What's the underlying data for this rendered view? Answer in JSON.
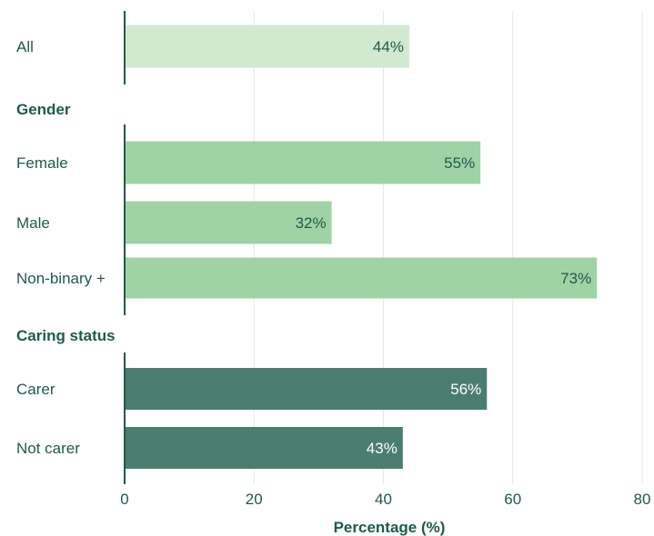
{
  "chart_data": {
    "type": "bar",
    "orientation": "horizontal",
    "xlabel": "Percentage (%)",
    "ylabel": "",
    "xlim": [
      0,
      80
    ],
    "x_ticks": [
      "0",
      "20",
      "40",
      "60",
      "80"
    ],
    "grid": true,
    "groups": [
      {
        "heading": "",
        "color": "#d0e9cf",
        "label_color": "#1f5a4a",
        "bars": [
          {
            "category": "All",
            "value": 44,
            "label": "44%"
          }
        ]
      },
      {
        "heading": "Gender",
        "color": "#9fd3a6",
        "label_color": "#1f5a4a",
        "bars": [
          {
            "category": "Female",
            "value": 55,
            "label": "55%"
          },
          {
            "category": "Male",
            "value": 32,
            "label": "32%"
          },
          {
            "category": "Non-binary +",
            "value": 73,
            "label": "73%"
          }
        ]
      },
      {
        "heading": "Caring status",
        "color": "#4a7d70",
        "label_color": "#ffffff",
        "bars": [
          {
            "category": "Carer",
            "value": 56,
            "label": "56%"
          },
          {
            "category": "Not carer",
            "value": 43,
            "label": "43%"
          }
        ]
      }
    ]
  },
  "colors": {
    "text": "#1f5a4a",
    "axis": "#1f5a4a",
    "grid": "#e4e8e6"
  }
}
